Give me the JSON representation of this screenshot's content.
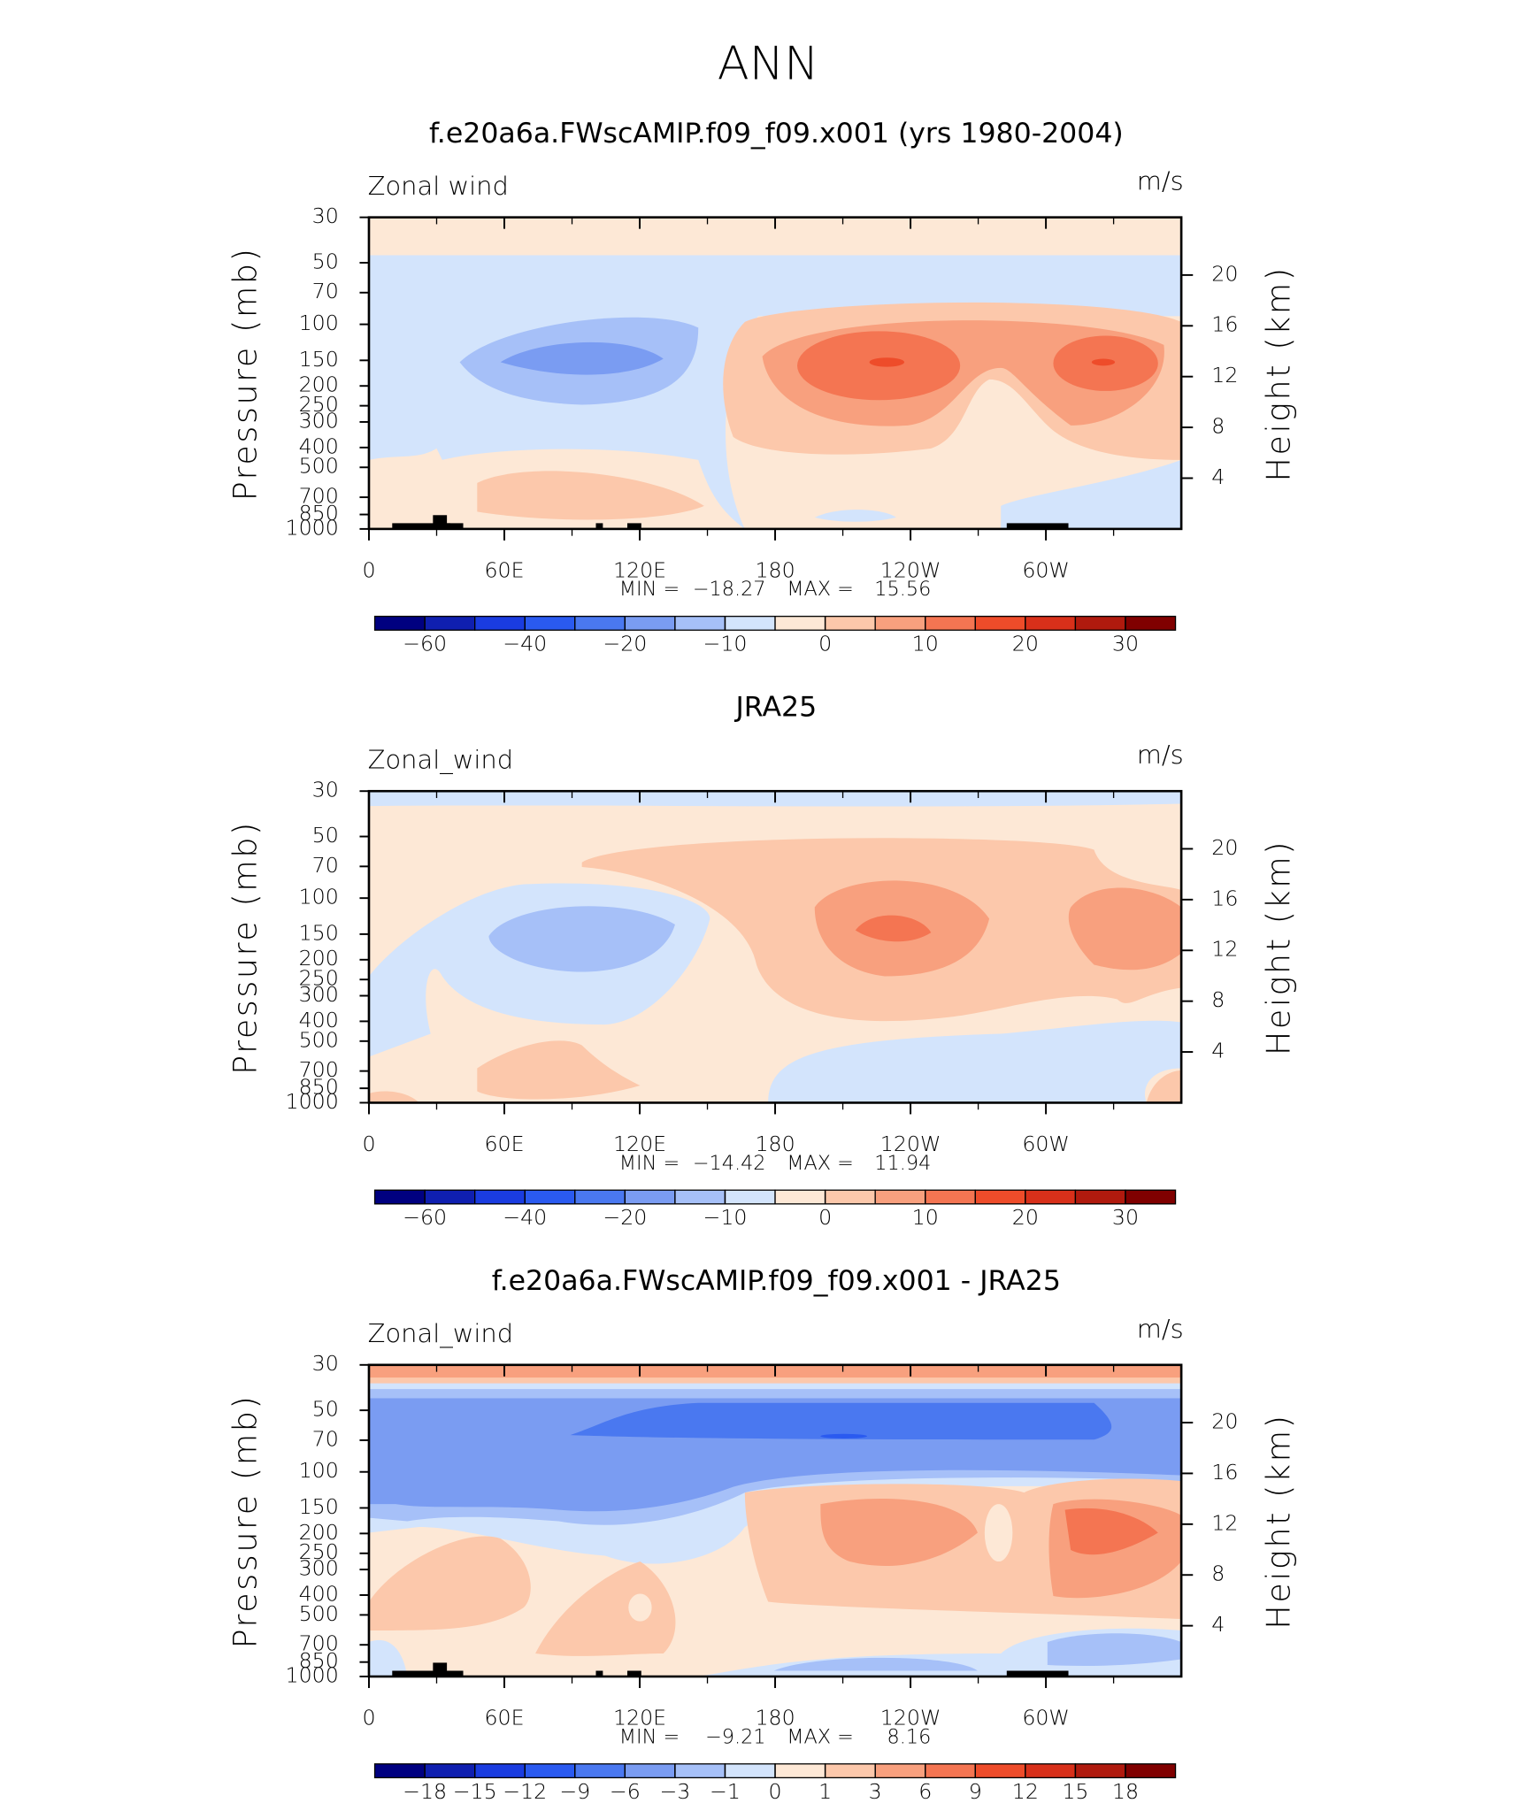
{
  "title": "ANN",
  "chart_data": [
    {
      "type": "contour",
      "title": "f.e20a6a.FWscAMIP.f09_f09.x001 (yrs 1980-2004)",
      "field": "Zonal wind",
      "units": "m/s",
      "ylabel": "Pressure (mb)",
      "y2label": "Height (km)",
      "log_y": true,
      "ylim": [
        1000,
        30
      ],
      "yticks": [
        30,
        50,
        70,
        100,
        150,
        200,
        250,
        300,
        400,
        500,
        700,
        850,
        1000
      ],
      "y2ticks": [
        4,
        8,
        12,
        16,
        20
      ],
      "xlim": [
        0,
        360
      ],
      "xticks": [
        0,
        {
          "value": 60,
          "label": "60E"
        },
        {
          "value": 120,
          "label": "120E"
        },
        180,
        {
          "value": 240,
          "label": "120W"
        },
        {
          "value": 300,
          "label": "60W"
        }
      ],
      "min_label": "MIN =",
      "min": "−18.27",
      "max_label": "MAX =",
      "max": "15.56",
      "colorbar": {
        "colors": [
          "#000080",
          "#0f1fb0",
          "#1a3ce0",
          "#2a5af0",
          "#4a78f0",
          "#7a9cf2",
          "#a6c0f8",
          "#d3e4fc",
          "#fde8d6",
          "#fcc8ab",
          "#f8a07e",
          "#f47552",
          "#ee4c2a",
          "#d8301a",
          "#b01a0e",
          "#800000"
        ],
        "ticks": [
          {
            "value": -60,
            "label": "−60"
          },
          {
            "value": -40,
            "label": "−40"
          },
          {
            "value": -20,
            "label": "−20"
          },
          {
            "value": -10,
            "label": "−10"
          },
          0,
          10,
          20,
          30
        ]
      }
    },
    {
      "type": "contour",
      "title": "JRA25",
      "field": "Zonal_wind",
      "units": "m/s",
      "ylabel": "Pressure (mb)",
      "y2label": "Height (km)",
      "log_y": true,
      "ylim": [
        1000,
        30
      ],
      "yticks": [
        30,
        50,
        70,
        100,
        150,
        200,
        250,
        300,
        400,
        500,
        700,
        850,
        1000
      ],
      "y2ticks": [
        4,
        8,
        12,
        16,
        20
      ],
      "xlim": [
        0,
        360
      ],
      "xticks": [
        0,
        {
          "value": 60,
          "label": "60E"
        },
        {
          "value": 120,
          "label": "120E"
        },
        180,
        {
          "value": 240,
          "label": "120W"
        },
        {
          "value": 300,
          "label": "60W"
        }
      ],
      "min_label": "MIN =",
      "min": "−14.42",
      "max_label": "MAX =",
      "max": "11.94",
      "colorbar": {
        "colors": [
          "#000080",
          "#0f1fb0",
          "#1a3ce0",
          "#2a5af0",
          "#4a78f0",
          "#7a9cf2",
          "#a6c0f8",
          "#d3e4fc",
          "#fde8d6",
          "#fcc8ab",
          "#f8a07e",
          "#f47552",
          "#ee4c2a",
          "#d8301a",
          "#b01a0e",
          "#800000"
        ],
        "ticks": [
          {
            "value": -60,
            "label": "−60"
          },
          {
            "value": -40,
            "label": "−40"
          },
          {
            "value": -20,
            "label": "−20"
          },
          {
            "value": -10,
            "label": "−10"
          },
          0,
          10,
          20,
          30
        ]
      }
    },
    {
      "type": "contour",
      "title": "f.e20a6a.FWscAMIP.f09_f09.x001 - JRA25",
      "field": "Zonal_wind",
      "units": "m/s",
      "ylabel": "Pressure (mb)",
      "y2label": "Height (km)",
      "log_y": true,
      "ylim": [
        1000,
        30
      ],
      "yticks": [
        30,
        50,
        70,
        100,
        150,
        200,
        250,
        300,
        400,
        500,
        700,
        850,
        1000
      ],
      "y2ticks": [
        4,
        8,
        12,
        16,
        20
      ],
      "xlim": [
        0,
        360
      ],
      "xticks": [
        0,
        {
          "value": 60,
          "label": "60E"
        },
        {
          "value": 120,
          "label": "120E"
        },
        180,
        {
          "value": 240,
          "label": "120W"
        },
        {
          "value": 300,
          "label": "60W"
        }
      ],
      "min_label": "MIN =",
      "min": "−9.21",
      "max_label": "MAX =",
      "max": "8.16",
      "colorbar": {
        "colors": [
          "#000080",
          "#0f1fb0",
          "#1a3ce0",
          "#2a5af0",
          "#4a78f0",
          "#7a9cf2",
          "#a6c0f8",
          "#d3e4fc",
          "#fde8d6",
          "#fcc8ab",
          "#f8a07e",
          "#f47552",
          "#ee4c2a",
          "#d8301a",
          "#b01a0e",
          "#800000"
        ],
        "ticks": [
          {
            "value": -18,
            "label": "−18"
          },
          {
            "value": -15,
            "label": "−15"
          },
          {
            "value": -12,
            "label": "−12"
          },
          {
            "value": -9,
            "label": "−9"
          },
          {
            "value": -6,
            "label": "−6"
          },
          {
            "value": -3,
            "label": "−3"
          },
          {
            "value": -1,
            "label": "−1"
          },
          0,
          1,
          3,
          6,
          9,
          12,
          15,
          18
        ]
      }
    }
  ]
}
